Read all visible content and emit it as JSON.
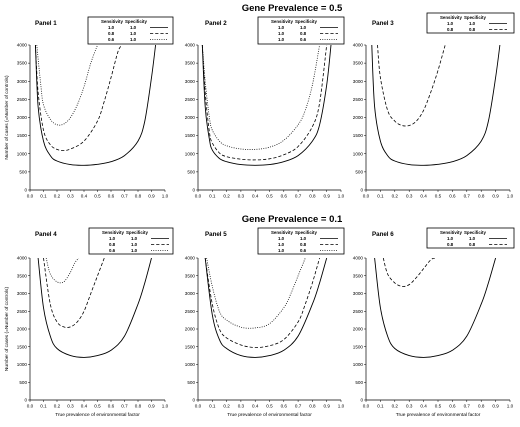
{
  "sections": [
    {
      "title": "Gene Prevalence = 0.5"
    },
    {
      "title": "Gene Prevalence = 0.1"
    }
  ],
  "shared_labels": {
    "ylabel": "Number of cases (=Number of controls)",
    "xlabel": "True prevalence of environmental factor"
  },
  "legend_headers": {
    "sensitivity": "Sensitivity",
    "specificity": "Specificity"
  },
  "chart_data": [
    {
      "type": "line",
      "title": "Panel 1",
      "xlim": [
        0.0,
        1.0
      ],
      "ylim": [
        0,
        4000
      ],
      "xticks": [
        "0.0",
        "0.1",
        "0.2",
        "0.3",
        "0.4",
        "0.5",
        "0.6",
        "0.7",
        "0.8",
        "0.9",
        "1.0"
      ],
      "yticks": [
        "0",
        "500",
        "1000",
        "1500",
        "2000",
        "2500",
        "3000",
        "3500",
        "4000"
      ],
      "ylabel": "Number of cases (=Number of controls)",
      "xlabel": "",
      "series": [
        {
          "sensitivity": "1.0",
          "specificity": "1.0",
          "style": "solid",
          "x": [
            0.04,
            0.06,
            0.1,
            0.15,
            0.2,
            0.3,
            0.4,
            0.5,
            0.6,
            0.7,
            0.8,
            0.85,
            0.9,
            0.93
          ],
          "y": [
            4000,
            2300,
            1350,
            950,
            800,
            700,
            680,
            710,
            780,
            950,
            1350,
            1900,
            3100,
            4000
          ]
        },
        {
          "sensitivity": "0.8",
          "specificity": "1.0",
          "style": "dashed",
          "x": [
            0.04,
            0.06,
            0.1,
            0.15,
            0.2,
            0.25,
            0.3,
            0.4,
            0.5,
            0.55,
            0.6,
            0.65,
            0.68
          ],
          "y": [
            4000,
            2700,
            1650,
            1250,
            1120,
            1090,
            1130,
            1350,
            1900,
            2450,
            3100,
            3800,
            4000
          ]
        },
        {
          "sensitivity": "0.6",
          "specificity": "1.0",
          "style": "dotted",
          "x": [
            0.05,
            0.08,
            0.1,
            0.15,
            0.2,
            0.25,
            0.3,
            0.35,
            0.4,
            0.45,
            0.5
          ],
          "y": [
            4000,
            2900,
            2350,
            1950,
            1800,
            1820,
            2000,
            2350,
            2850,
            3500,
            4000
          ]
        }
      ]
    },
    {
      "type": "line",
      "title": "Panel 2",
      "xlim": [
        0.0,
        1.0
      ],
      "ylim": [
        0,
        4000
      ],
      "xticks": [
        "0.0",
        "0.1",
        "0.2",
        "0.3",
        "0.4",
        "0.5",
        "0.6",
        "0.7",
        "0.8",
        "0.9",
        "1.0"
      ],
      "yticks": [
        "0",
        "500",
        "1000",
        "1500",
        "2000",
        "2500",
        "3000",
        "3500",
        "4000"
      ],
      "ylabel": "",
      "xlabel": "",
      "series": [
        {
          "sensitivity": "1.0",
          "specificity": "1.0",
          "style": "solid",
          "x": [
            0.03,
            0.05,
            0.08,
            0.1,
            0.15,
            0.2,
            0.3,
            0.4,
            0.5,
            0.6,
            0.7,
            0.8,
            0.85,
            0.9,
            0.93
          ],
          "y": [
            4000,
            2300,
            1400,
            1100,
            870,
            780,
            700,
            680,
            700,
            780,
            950,
            1350,
            1800,
            2900,
            4000
          ]
        },
        {
          "sensitivity": "1.0",
          "specificity": "0.8",
          "style": "dashed",
          "x": [
            0.03,
            0.05,
            0.08,
            0.1,
            0.15,
            0.2,
            0.3,
            0.4,
            0.5,
            0.6,
            0.7,
            0.8,
            0.85,
            0.9
          ],
          "y": [
            4000,
            2700,
            1600,
            1300,
            1020,
            920,
            850,
            830,
            860,
            970,
            1200,
            1750,
            2400,
            4000
          ]
        },
        {
          "sensitivity": "1.0",
          "specificity": "0.6",
          "style": "dotted",
          "x": [
            0.03,
            0.05,
            0.08,
            0.1,
            0.15,
            0.2,
            0.3,
            0.4,
            0.5,
            0.6,
            0.7,
            0.75,
            0.8,
            0.85
          ],
          "y": [
            4000,
            3000,
            2000,
            1650,
            1350,
            1220,
            1130,
            1120,
            1180,
            1370,
            1800,
            2200,
            2900,
            4000
          ]
        }
      ]
    },
    {
      "type": "line",
      "title": "Panel 3",
      "xlim": [
        0.0,
        1.0
      ],
      "ylim": [
        0,
        4000
      ],
      "xticks": [
        "0.0",
        "0.1",
        "0.2",
        "0.3",
        "0.4",
        "0.5",
        "0.6",
        "0.7",
        "0.8",
        "0.9",
        "1.0"
      ],
      "yticks": [
        "0",
        "500",
        "1000",
        "1500",
        "2000",
        "2500",
        "3000",
        "3500",
        "4000"
      ],
      "ylabel": "",
      "xlabel": "",
      "series": [
        {
          "sensitivity": "1.0",
          "specificity": "1.0",
          "style": "solid",
          "x": [
            0.04,
            0.06,
            0.1,
            0.15,
            0.2,
            0.3,
            0.4,
            0.5,
            0.6,
            0.7,
            0.8,
            0.85,
            0.9,
            0.93
          ],
          "y": [
            4000,
            2300,
            1350,
            950,
            800,
            700,
            680,
            710,
            780,
            950,
            1350,
            1900,
            3100,
            4000
          ]
        },
        {
          "sensitivity": "0.8",
          "specificity": "0.8",
          "style": "dashed",
          "x": [
            0.08,
            0.1,
            0.15,
            0.2,
            0.25,
            0.3,
            0.35,
            0.4,
            0.45,
            0.5,
            0.55
          ],
          "y": [
            4000,
            3100,
            2200,
            1900,
            1780,
            1780,
            1900,
            2200,
            2700,
            3300,
            4000
          ]
        }
      ]
    },
    {
      "type": "line",
      "title": "Panel 4",
      "xlim": [
        0.0,
        1.0
      ],
      "ylim": [
        0,
        4000
      ],
      "xticks": [
        "0.0",
        "0.1",
        "0.2",
        "0.3",
        "0.4",
        "0.5",
        "0.6",
        "0.7",
        "0.8",
        "0.9",
        "1.0"
      ],
      "yticks": [
        "0",
        "500",
        "1000",
        "1500",
        "2000",
        "2500",
        "3000",
        "3500",
        "4000"
      ],
      "ylabel": "Number of cases (=Number of controls)",
      "xlabel": "True prevalence of environmental factor",
      "series": [
        {
          "sensitivity": "1.0",
          "specificity": "1.0",
          "style": "solid",
          "x": [
            0.06,
            0.1,
            0.15,
            0.2,
            0.3,
            0.4,
            0.5,
            0.6,
            0.7,
            0.8,
            0.85,
            0.9
          ],
          "y": [
            4000,
            2600,
            1800,
            1450,
            1250,
            1200,
            1250,
            1400,
            1800,
            2700,
            3300,
            4000
          ]
        },
        {
          "sensitivity": "0.8",
          "specificity": "1.0",
          "style": "dashed",
          "x": [
            0.1,
            0.15,
            0.2,
            0.25,
            0.3,
            0.35,
            0.4,
            0.45,
            0.5,
            0.55
          ],
          "y": [
            4000,
            2700,
            2200,
            2060,
            2060,
            2200,
            2500,
            3000,
            3500,
            4000
          ]
        },
        {
          "sensitivity": "0.6",
          "specificity": "1.0",
          "style": "dotted",
          "x": [
            0.12,
            0.15,
            0.2,
            0.25,
            0.3,
            0.33,
            0.36
          ],
          "y": [
            4000,
            3550,
            3330,
            3330,
            3600,
            3850,
            4000
          ]
        }
      ]
    },
    {
      "type": "line",
      "title": "Panel 5",
      "xlim": [
        0.0,
        1.0
      ],
      "ylim": [
        0,
        4000
      ],
      "xticks": [
        "0.0",
        "0.1",
        "0.2",
        "0.3",
        "0.4",
        "0.5",
        "0.6",
        "0.7",
        "0.8",
        "0.9",
        "1.0"
      ],
      "yticks": [
        "0",
        "500",
        "1000",
        "1500",
        "2000",
        "2500",
        "3000",
        "3500",
        "4000"
      ],
      "ylabel": "",
      "xlabel": "True prevalence of environmental factor",
      "series": [
        {
          "sensitivity": "1.0",
          "specificity": "1.0",
          "style": "solid",
          "x": [
            0.05,
            0.1,
            0.15,
            0.2,
            0.3,
            0.4,
            0.5,
            0.6,
            0.7,
            0.8,
            0.85,
            0.9
          ],
          "y": [
            4000,
            2400,
            1700,
            1450,
            1250,
            1200,
            1250,
            1400,
            1800,
            2700,
            3300,
            4000
          ]
        },
        {
          "sensitivity": "1.0",
          "specificity": "0.8",
          "style": "dashed",
          "x": [
            0.05,
            0.1,
            0.15,
            0.2,
            0.3,
            0.4,
            0.5,
            0.6,
            0.7,
            0.75,
            0.8,
            0.85
          ],
          "y": [
            4000,
            2700,
            2000,
            1750,
            1550,
            1480,
            1530,
            1700,
            2200,
            2700,
            3300,
            4000
          ]
        },
        {
          "sensitivity": "1.0",
          "specificity": "0.6",
          "style": "dotted",
          "x": [
            0.06,
            0.1,
            0.15,
            0.2,
            0.3,
            0.4,
            0.5,
            0.6,
            0.65,
            0.7,
            0.75
          ],
          "y": [
            4000,
            3200,
            2500,
            2250,
            2050,
            2030,
            2150,
            2600,
            3000,
            3500,
            4000
          ]
        }
      ]
    },
    {
      "type": "line",
      "title": "Panel 6",
      "xlim": [
        0.0,
        1.0
      ],
      "ylim": [
        0,
        4000
      ],
      "xticks": [
        "0.0",
        "0.1",
        "0.2",
        "0.3",
        "0.4",
        "0.5",
        "0.6",
        "0.7",
        "0.8",
        "0.9",
        "1.0"
      ],
      "yticks": [
        "0",
        "500",
        "1000",
        "1500",
        "2000",
        "2500",
        "3000",
        "3500",
        "4000"
      ],
      "ylabel": "",
      "xlabel": "True prevalence of environmental factor",
      "series": [
        {
          "sensitivity": "1.0",
          "specificity": "1.0",
          "style": "solid",
          "x": [
            0.06,
            0.1,
            0.15,
            0.2,
            0.3,
            0.4,
            0.5,
            0.6,
            0.7,
            0.8,
            0.85,
            0.9
          ],
          "y": [
            4000,
            2600,
            1800,
            1450,
            1250,
            1200,
            1250,
            1400,
            1800,
            2700,
            3300,
            4000
          ]
        },
        {
          "sensitivity": "0.8",
          "specificity": "0.8",
          "style": "dashed",
          "x": [
            0.12,
            0.15,
            0.2,
            0.25,
            0.3,
            0.35,
            0.4,
            0.45,
            0.48
          ],
          "y": [
            4000,
            3550,
            3300,
            3200,
            3250,
            3450,
            3700,
            3950,
            4000
          ]
        }
      ]
    }
  ]
}
